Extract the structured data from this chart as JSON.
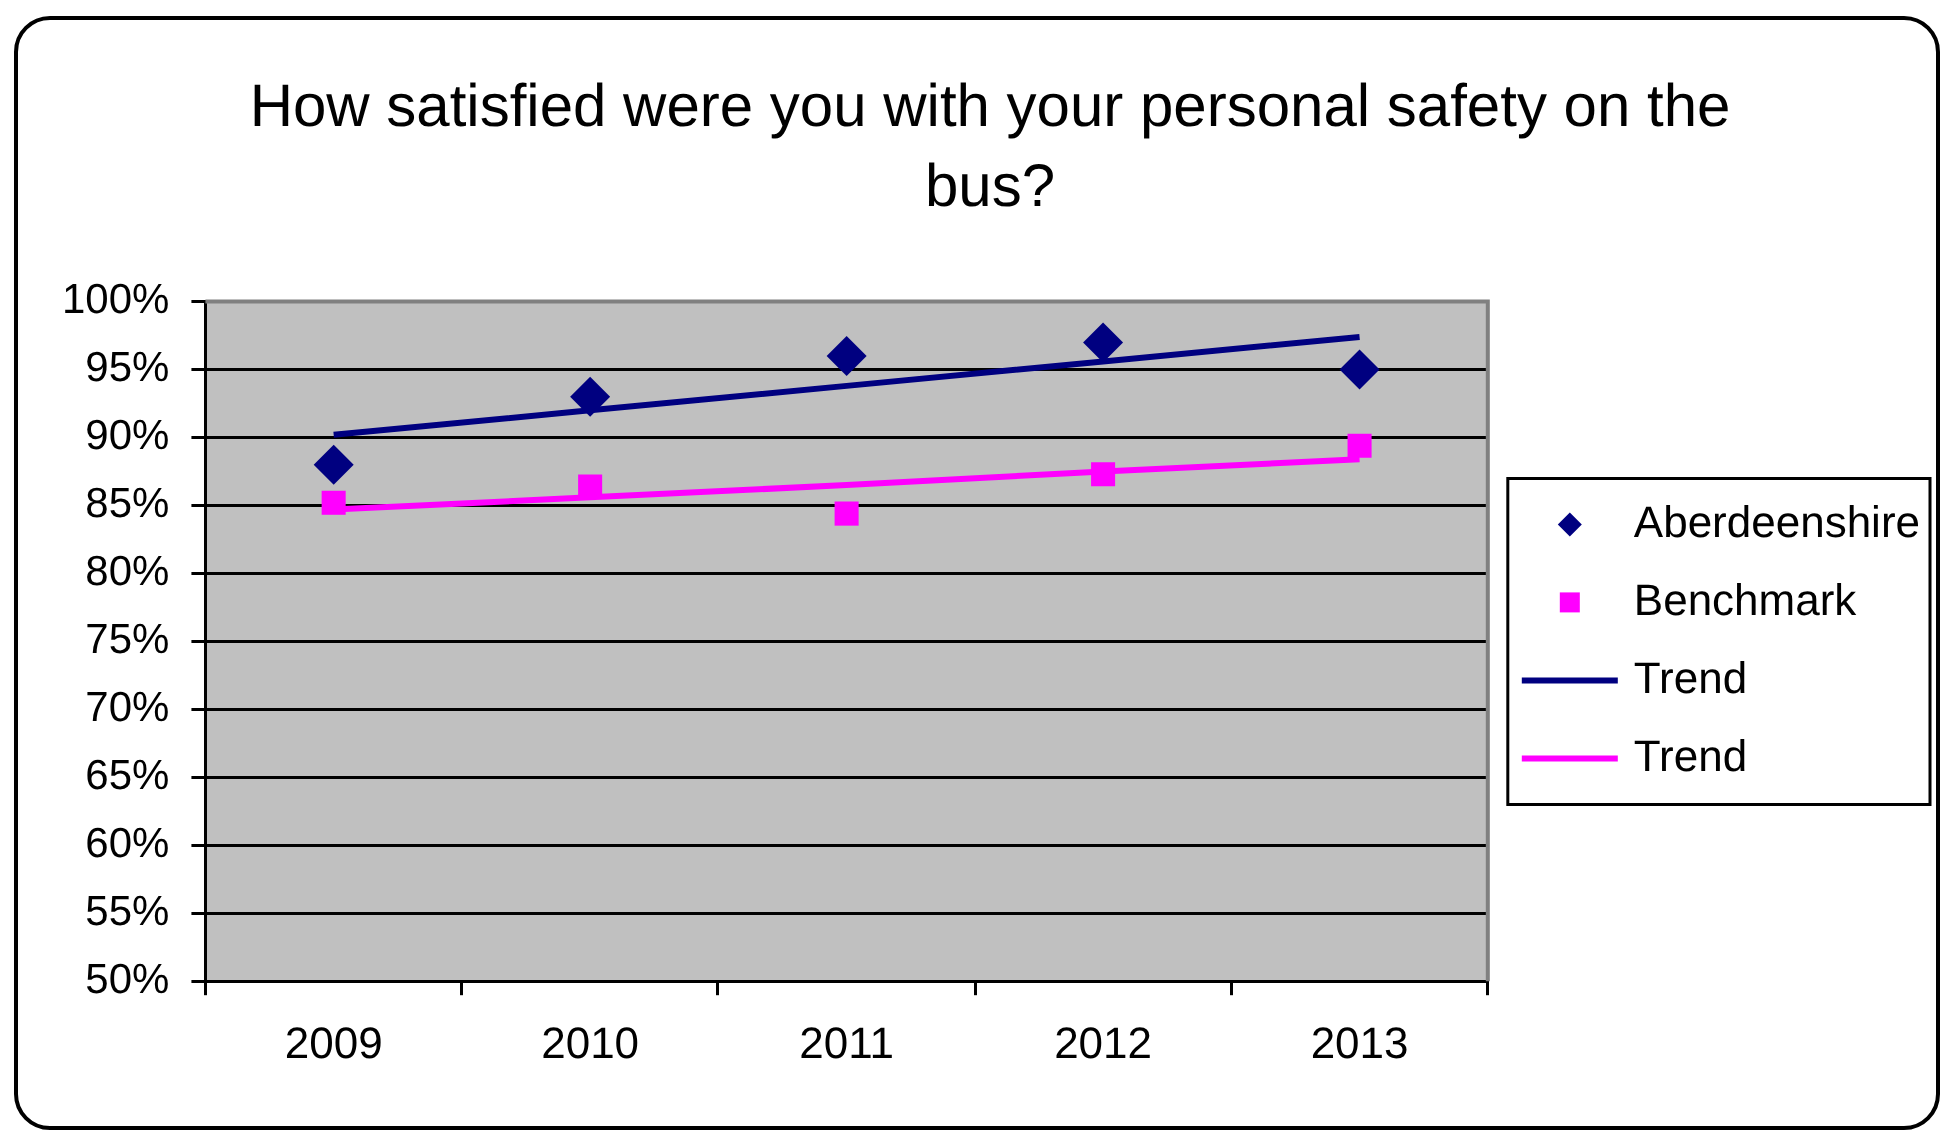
{
  "chart_data": {
    "type": "scatter",
    "title": "How satisfied were you with your personal safety on the bus?",
    "categories": [
      "2009",
      "2010",
      "2011",
      "2012",
      "2013"
    ],
    "ylim": [
      50,
      100
    ],
    "yticks": [
      {
        "value": 50,
        "label": "50%"
      },
      {
        "value": 55,
        "label": "55%"
      },
      {
        "value": 60,
        "label": "60%"
      },
      {
        "value": 65,
        "label": "65%"
      },
      {
        "value": 70,
        "label": "70%"
      },
      {
        "value": 75,
        "label": "75%"
      },
      {
        "value": 80,
        "label": "80%"
      },
      {
        "value": 85,
        "label": "85%"
      },
      {
        "value": 90,
        "label": "90%"
      },
      {
        "value": 95,
        "label": "95%"
      },
      {
        "value": 100,
        "label": "100%"
      }
    ],
    "grid": "y",
    "legend": "right",
    "series": [
      {
        "name": "Aberdeenshire",
        "color": "#000080",
        "marker": "diamond",
        "values": [
          88,
          93,
          96,
          97,
          95
        ]
      },
      {
        "name": "Benchmark",
        "color": "#ff00ff",
        "marker": "square",
        "values": [
          85.2,
          86.4,
          84.4,
          87.3,
          89.4
        ]
      },
      {
        "name": "Trend",
        "type": "line",
        "color": "#000080",
        "marker": "none",
        "line_style": "solid",
        "values": [
          90.2,
          92,
          93.8,
          95.6,
          97.4
        ]
      },
      {
        "name": "Trend",
        "type": "line",
        "color": "#ff00ff",
        "marker": "none",
        "line_style": "solid",
        "values": [
          84.7,
          85.6,
          86.5,
          87.5,
          88.4
        ]
      }
    ]
  }
}
